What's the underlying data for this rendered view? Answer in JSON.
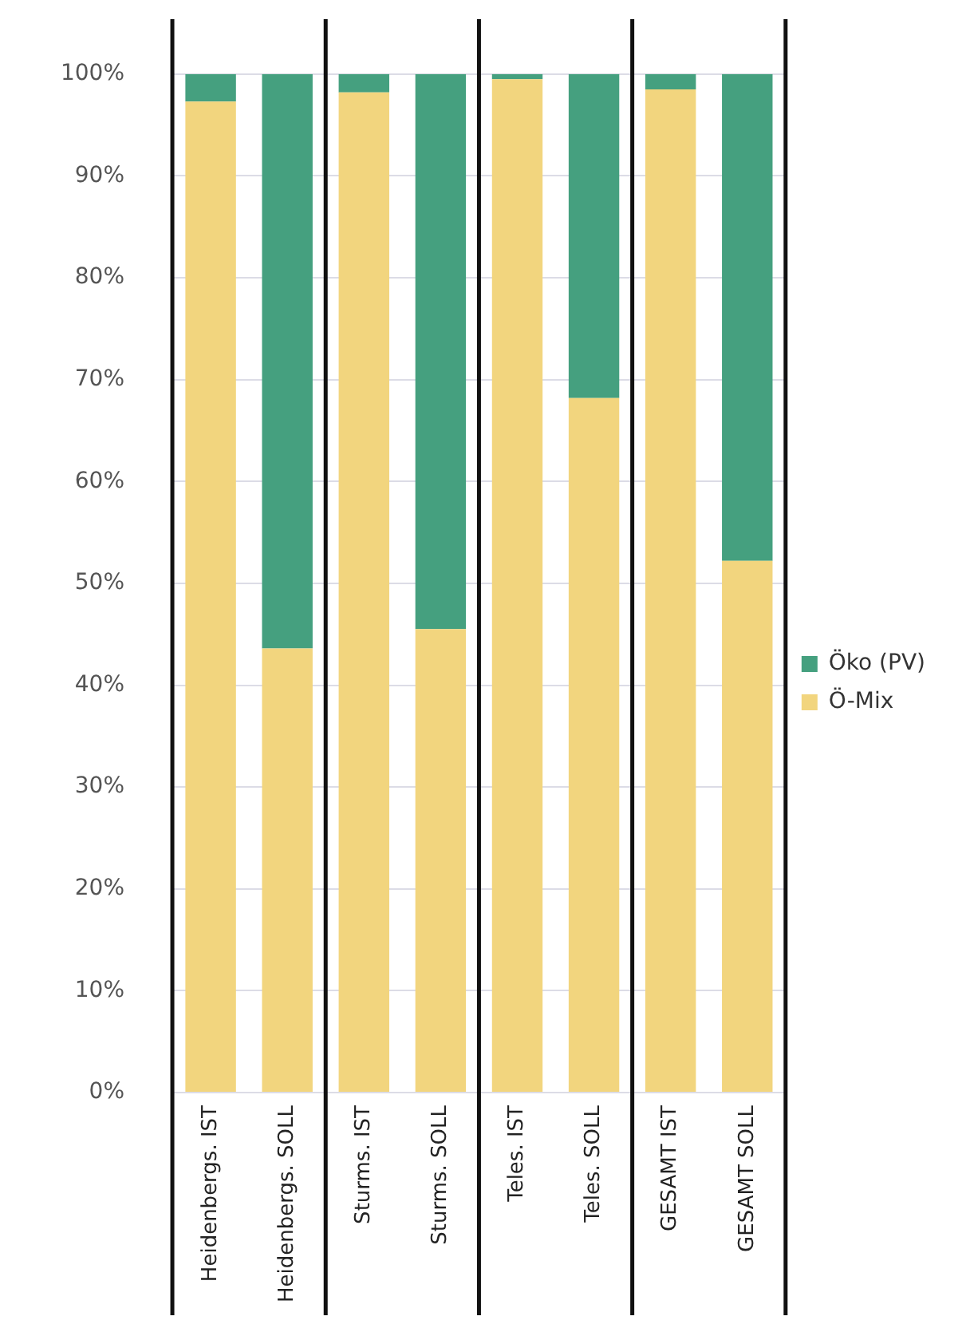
{
  "chart_data": {
    "type": "bar",
    "stacked": true,
    "categories": [
      "Heidenbergs. IST",
      "Heidenbergs. SOLL",
      "Sturms. IST",
      "Sturms. SOLL",
      "Teles. IST",
      "Teles. SOLL",
      "GESAMT IST",
      "GESAMT SOLL"
    ],
    "series": [
      {
        "name": "Ö-Mix",
        "color": "#f2d57e",
        "values": [
          97.3,
          43.6,
          98.2,
          45.5,
          99.5,
          68.2,
          98.5,
          52.2
        ]
      },
      {
        "name": "Öko (PV)",
        "color": "#45a07f",
        "values": [
          2.7,
          56.4,
          1.8,
          54.5,
          0.5,
          31.8,
          1.5,
          47.8
        ]
      }
    ],
    "ylim": [
      0,
      100
    ],
    "yticks": [
      {
        "value": 0,
        "label": "0%"
      },
      {
        "value": 10,
        "label": "10%"
      },
      {
        "value": 20,
        "label": "20%"
      },
      {
        "value": 30,
        "label": "30%"
      },
      {
        "value": 40,
        "label": "40%"
      },
      {
        "value": 50,
        "label": "50%"
      },
      {
        "value": 60,
        "label": "60%"
      },
      {
        "value": 70,
        "label": "70%"
      },
      {
        "value": 80,
        "label": "80%"
      },
      {
        "value": 90,
        "label": "90%"
      },
      {
        "value": 100,
        "label": "100%"
      }
    ],
    "grid": "y",
    "legend": "right"
  }
}
